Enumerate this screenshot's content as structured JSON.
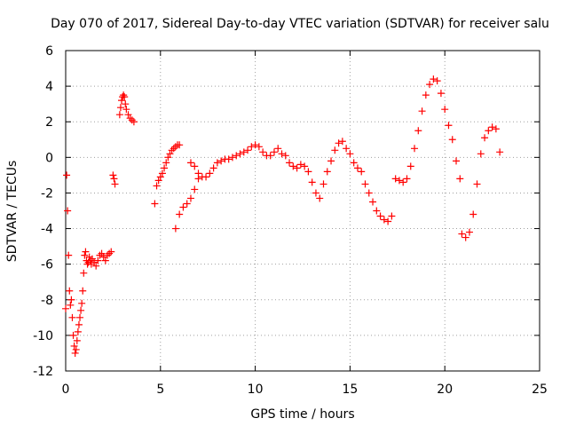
{
  "chart_data": {
    "type": "scatter",
    "title": "Day 070 of 2017, Sidereal Day-to-day VTEC variation (SDTVAR) for receiver salu",
    "xlabel": "GPS time / hours",
    "ylabel": "SDTVAR / TECUs",
    "xlim": [
      0,
      25
    ],
    "ylim": [
      -12,
      6
    ],
    "xticks": [
      0,
      5,
      10,
      15,
      20,
      25
    ],
    "yticks": [
      -12,
      -10,
      -8,
      -6,
      -4,
      -2,
      0,
      2,
      4,
      6
    ],
    "grid": true,
    "marker": "+",
    "color": "#ff0000",
    "series": [
      {
        "name": "SDTVAR",
        "x": [
          0.0,
          0.05,
          0.1,
          0.15,
          0.2,
          0.25,
          0.3,
          0.35,
          0.4,
          0.45,
          0.5,
          0.55,
          0.6,
          0.65,
          0.7,
          0.75,
          0.8,
          0.85,
          0.9,
          0.95,
          1.0,
          1.05,
          1.1,
          1.15,
          1.2,
          1.25,
          1.3,
          1.35,
          1.4,
          1.5,
          1.6,
          1.7,
          1.8,
          1.9,
          2.0,
          2.1,
          2.2,
          2.3,
          2.4,
          2.5,
          2.55,
          2.6,
          2.85,
          2.9,
          2.95,
          3.0,
          3.05,
          3.1,
          3.15,
          3.2,
          3.3,
          3.4,
          3.5,
          3.6,
          4.7,
          4.8,
          4.9,
          5.0,
          5.1,
          5.2,
          5.3,
          5.4,
          5.5,
          5.6,
          5.7,
          5.8,
          5.9,
          6.0,
          5.8,
          6.0,
          6.2,
          6.4,
          6.6,
          6.8,
          7.0,
          6.6,
          6.8,
          7.0,
          7.2,
          7.4,
          7.6,
          7.8,
          8.0,
          8.2,
          8.4,
          8.6,
          8.8,
          9.0,
          9.2,
          9.4,
          9.6,
          9.8,
          10.0,
          10.2,
          10.4,
          10.6,
          10.8,
          11.0,
          11.2,
          11.4,
          11.6,
          11.8,
          12.0,
          12.2,
          12.4,
          12.6,
          12.8,
          13.0,
          13.2,
          13.4,
          13.6,
          13.8,
          14.0,
          14.2,
          14.4,
          14.6,
          14.8,
          15.0,
          15.2,
          15.4,
          15.6,
          15.8,
          16.0,
          16.2,
          16.4,
          16.6,
          16.8,
          17.0,
          17.2,
          17.4,
          17.6,
          17.8,
          18.0,
          18.2,
          18.4,
          18.6,
          18.8,
          19.0,
          19.2,
          19.4,
          19.6,
          19.8,
          20.0,
          20.2,
          20.4,
          20.6,
          20.8,
          20.9,
          21.1,
          21.3,
          21.5,
          21.7,
          21.9,
          22.1,
          22.3,
          22.5,
          22.7,
          22.9
        ],
        "y": [
          -8.5,
          -1.0,
          -3.0,
          -5.5,
          -7.5,
          -8.3,
          -8.0,
          -9.0,
          -10.0,
          -10.6,
          -11.0,
          -10.8,
          -10.3,
          -9.8,
          -9.4,
          -9.0,
          -8.6,
          -8.2,
          -7.5,
          -6.5,
          -5.5,
          -5.3,
          -5.8,
          -6.0,
          -5.9,
          -5.6,
          -5.8,
          -6.0,
          -5.7,
          -5.9,
          -6.1,
          -5.8,
          -5.5,
          -5.4,
          -5.6,
          -5.8,
          -5.5,
          -5.4,
          -5.3,
          -1.0,
          -1.2,
          -1.5,
          2.4,
          2.8,
          3.2,
          3.4,
          3.5,
          3.4,
          3.0,
          2.7,
          2.4,
          2.2,
          2.1,
          2.0,
          -2.6,
          -1.6,
          -1.3,
          -1.1,
          -0.9,
          -0.6,
          -0.3,
          0.0,
          0.2,
          0.4,
          0.5,
          0.6,
          0.7,
          0.7,
          -4.0,
          -3.2,
          -2.8,
          -2.6,
          -2.3,
          -1.8,
          -1.2,
          -0.3,
          -0.5,
          -0.9,
          -1.1,
          -1.1,
          -0.9,
          -0.6,
          -0.3,
          -0.2,
          -0.1,
          -0.1,
          0.0,
          0.1,
          0.2,
          0.3,
          0.4,
          0.6,
          0.7,
          0.6,
          0.3,
          0.1,
          0.1,
          0.3,
          0.5,
          0.2,
          0.1,
          -0.3,
          -0.5,
          -0.6,
          -0.4,
          -0.5,
          -0.8,
          -1.4,
          -2.0,
          -2.3,
          -1.5,
          -0.8,
          -0.2,
          0.4,
          0.8,
          0.9,
          0.5,
          0.2,
          -0.3,
          -0.6,
          -0.8,
          -1.5,
          -2.0,
          -2.5,
          -3.0,
          -3.3,
          -3.5,
          -3.6,
          -3.3,
          -1.2,
          -1.3,
          -1.4,
          -1.2,
          -0.5,
          0.5,
          1.5,
          2.6,
          3.5,
          4.1,
          4.4,
          4.3,
          3.6,
          2.7,
          1.8,
          1.0,
          -0.2,
          -1.2,
          -4.3,
          -4.5,
          -4.2,
          -3.2,
          -1.5,
          0.2,
          1.1,
          1.5,
          1.7,
          1.6,
          0.3
        ]
      }
    ]
  }
}
